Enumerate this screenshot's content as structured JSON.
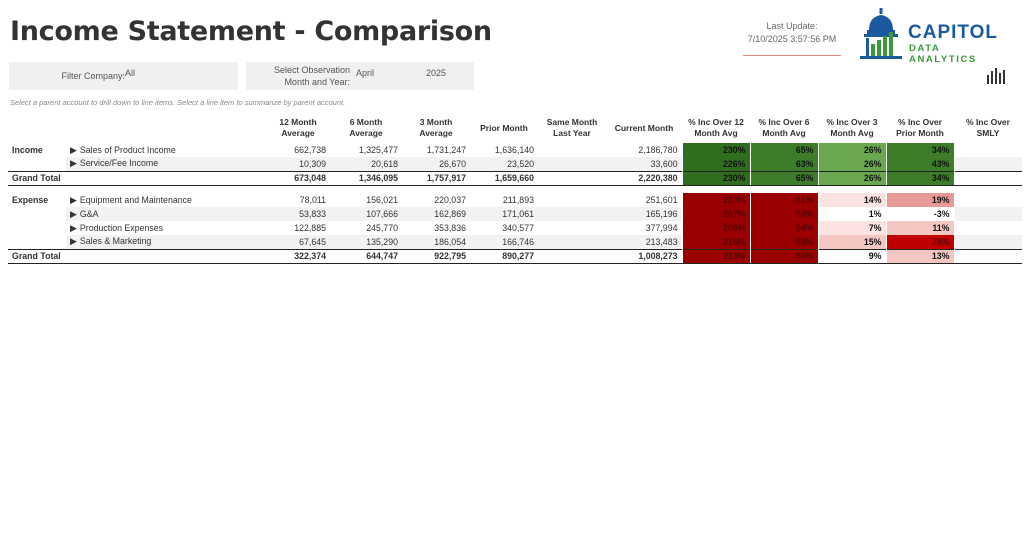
{
  "page": {
    "title": "Income Statement - Comparison",
    "last_update_label": "Last Update:",
    "last_update_value": "7/10/2025 3:57:56 PM",
    "logo_primary": "CAPITOL",
    "logo_secondary": "DATA ANALYTICS",
    "hint": "Select a parent account to drill down to line items. Select a line item to summarize by parent account."
  },
  "filters": {
    "company_label": "Filter Company:",
    "company_value": "All",
    "period_label_1": "Select Observation",
    "period_label_2": "Month and Year:",
    "month_value": "April",
    "year_value": "2025"
  },
  "columns": {
    "m12": [
      "12 Month",
      "Average"
    ],
    "m6": [
      "6 Month",
      "Average"
    ],
    "m3": [
      "3 Month",
      "Average"
    ],
    "prior": [
      "Prior Month",
      ""
    ],
    "smly": [
      "Same Month",
      "Last Year"
    ],
    "current": [
      "Current Month",
      ""
    ],
    "p12": [
      "% Inc Over 12",
      "Month Avg"
    ],
    "p6": [
      "% Inc Over 6",
      "Month Avg"
    ],
    "p3": [
      "% Inc Over 3",
      "Month Avg"
    ],
    "pprior": [
      "% Inc Over",
      "Prior Month"
    ],
    "psmly": [
      "% Inc Over",
      "SMLY"
    ]
  },
  "income": {
    "group": "Income",
    "rows": [
      {
        "label": "Sales of Product Income",
        "m12": "662,738",
        "m6": "1,325,477",
        "m3": "1,731,247",
        "prior": "1,636,140",
        "smly": "",
        "current": "2,186,780",
        "p12": "230%",
        "p6": "65%",
        "p3": "26%",
        "pprior": "34%",
        "psmly": ""
      },
      {
        "label": "Service/Fee Income",
        "m12": "10,309",
        "m6": "20,618",
        "m3": "26,670",
        "prior": "23,520",
        "smly": "",
        "current": "33,600",
        "p12": "226%",
        "p6": "63%",
        "p3": "26%",
        "pprior": "43%",
        "psmly": ""
      }
    ],
    "total": {
      "label": "Grand Total",
      "m12": "673,048",
      "m6": "1,346,095",
      "m3": "1,757,917",
      "prior": "1,659,660",
      "smly": "",
      "current": "2,220,380",
      "p12": "230%",
      "p6": "65%",
      "p3": "26%",
      "pprior": "34%",
      "psmly": ""
    }
  },
  "expense": {
    "group": "Expense",
    "rows": [
      {
        "label": "Equipment and Maintenance",
        "m12": "78,011",
        "m6": "156,021",
        "m3": "220,037",
        "prior": "211,893",
        "smly": "",
        "current": "251,601",
        "p12": "223%",
        "p6": "61%",
        "p3": "14%",
        "pprior": "19%",
        "psmly": ""
      },
      {
        "label": "G&A",
        "m12": "53,833",
        "m6": "107,666",
        "m3": "162,869",
        "prior": "171,061",
        "smly": "",
        "current": "165,196",
        "p12": "207%",
        "p6": "53%",
        "p3": "1%",
        "pprior": "-3%",
        "psmly": ""
      },
      {
        "label": "Production Expenses",
        "m12": "122,885",
        "m6": "245,770",
        "m3": "353,836",
        "prior": "340,577",
        "smly": "",
        "current": "377,994",
        "p12": "208%",
        "p6": "54%",
        "p3": "7%",
        "pprior": "11%",
        "psmly": ""
      },
      {
        "label": "Sales & Marketing",
        "m12": "67,645",
        "m6": "135,290",
        "m3": "186,054",
        "prior": "166,746",
        "smly": "",
        "current": "213,483",
        "p12": "216%",
        "p6": "58%",
        "p3": "15%",
        "pprior": "28%",
        "psmly": ""
      }
    ],
    "total": {
      "label": "Grand Total",
      "m12": "322,374",
      "m6": "644,747",
      "m3": "922,795",
      "prior": "890,277",
      "smly": "",
      "current": "1,008,273",
      "p12": "213%",
      "p6": "56%",
      "p3": "9%",
      "pprior": "13%",
      "psmly": ""
    }
  },
  "colors": {
    "income_dark": "#2f6e1e",
    "income_mid": "#3d7d2a",
    "income_light": "#6aa84f",
    "expense_dark": "#9a0000",
    "expense_red": "#c00000",
    "expense_pink": "#f4c7c3",
    "expense_rose": "#ea9999",
    "expense_pale": "#fbe3e1",
    "neutral": "#ffffff",
    "logo_blue": "#1c5aa0",
    "logo_green": "#3a9a3a"
  }
}
